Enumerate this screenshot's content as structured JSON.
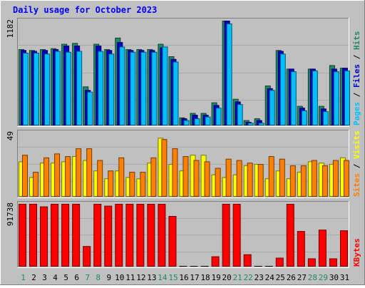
{
  "chart_data": [
    {
      "type": "bar",
      "title": "Daily usage for October 2023",
      "ylabel_max": "1182",
      "legend": [
        {
          "text": "Pages",
          "color": "#00bfff"
        },
        {
          "text": "Files",
          "color": "#0000cc"
        },
        {
          "text": "Hits",
          "color": "#218969"
        }
      ],
      "categories": [
        "1",
        "2",
        "3",
        "4",
        "5",
        "6",
        "7",
        "8",
        "9",
        "10",
        "11",
        "12",
        "13",
        "14",
        "15",
        "16",
        "17",
        "18",
        "19",
        "20",
        "21",
        "22",
        "23",
        "24",
        "25",
        "26",
        "27",
        "28",
        "29",
        "30",
        "31"
      ],
      "weekend_days": [
        "1",
        "7",
        "8",
        "14",
        "15",
        "21",
        "22",
        "28",
        "29"
      ],
      "ylim": [
        0,
        1182
      ],
      "series": [
        {
          "name": "Hits",
          "color": "#218969",
          "values": [
            860,
            850,
            860,
            870,
            920,
            930,
            440,
            920,
            860,
            990,
            860,
            860,
            860,
            920,
            780,
            90,
            140,
            140,
            260,
            1182,
            300,
            60,
            80,
            450,
            850,
            640,
            220,
            640,
            220,
            680,
            650
          ]
        },
        {
          "name": "Files",
          "color": "#0000cc",
          "values": [
            850,
            840,
            850,
            860,
            900,
            900,
            400,
            900,
            850,
            940,
            850,
            850,
            850,
            880,
            750,
            80,
            120,
            120,
            230,
            1182,
            270,
            40,
            60,
            420,
            840,
            640,
            200,
            640,
            190,
            640,
            650
          ]
        },
        {
          "name": "Pages",
          "color": "#00bfff",
          "values": [
            820,
            820,
            810,
            840,
            830,
            840,
            380,
            840,
            810,
            890,
            830,
            830,
            830,
            890,
            720,
            60,
            80,
            100,
            200,
            1150,
            240,
            30,
            30,
            400,
            810,
            610,
            170,
            620,
            160,
            610,
            620
          ]
        }
      ]
    },
    {
      "type": "bar",
      "ylabel_max": "49",
      "legend": [
        {
          "text": "Sites",
          "color": "#ff8000"
        },
        {
          "text": "Visits",
          "color": "#ffff00"
        }
      ],
      "categories": [
        "1",
        "2",
        "3",
        "4",
        "5",
        "6",
        "7",
        "8",
        "9",
        "10",
        "11",
        "12",
        "13",
        "14",
        "15",
        "16",
        "17",
        "18",
        "19",
        "20",
        "21",
        "22",
        "23",
        "24",
        "25",
        "26",
        "27",
        "28",
        "29",
        "30",
        "31"
      ],
      "ylim": [
        0,
        49
      ],
      "series": [
        {
          "name": "Visits",
          "color": "#ffff00",
          "values": [
            27,
            15,
            26,
            26,
            27,
            31,
            28,
            20,
            14,
            20,
            15,
            14,
            26,
            45,
            25,
            20,
            32,
            32,
            17,
            15,
            17,
            24,
            25,
            14,
            20,
            14,
            19,
            27,
            26,
            25,
            30
          ]
        },
        {
          "name": "Sites",
          "color": "#ff8000",
          "values": [
            32,
            19,
            30,
            33,
            31,
            37,
            37,
            28,
            20,
            30,
            19,
            19,
            30,
            44,
            37,
            31,
            28,
            27,
            22,
            29,
            28,
            26,
            25,
            31,
            29,
            24,
            24,
            28,
            24,
            28,
            28
          ]
        }
      ]
    },
    {
      "type": "bar",
      "ylabel_max": "91738",
      "legend": [
        {
          "text": "KBytes",
          "color": "#ff0000"
        }
      ],
      "categories": [
        "1",
        "2",
        "3",
        "4",
        "5",
        "6",
        "7",
        "8",
        "9",
        "10",
        "11",
        "12",
        "13",
        "14",
        "15",
        "16",
        "17",
        "18",
        "19",
        "20",
        "21",
        "22",
        "23",
        "24",
        "25",
        "26",
        "27",
        "28",
        "29",
        "30",
        "31"
      ],
      "ylim": [
        0,
        91738
      ],
      "series": [
        {
          "name": "KBytes",
          "color": "#ff0000",
          "values": [
            91738,
            91738,
            88000,
            91738,
            91738,
            91738,
            30000,
            91738,
            89000,
            91738,
            91738,
            91738,
            91738,
            91738,
            74000,
            0,
            0,
            0,
            15000,
            91738,
            91738,
            18000,
            0,
            0,
            13000,
            91738,
            52000,
            12000,
            54000,
            12000,
            53000
          ]
        }
      ]
    }
  ]
}
